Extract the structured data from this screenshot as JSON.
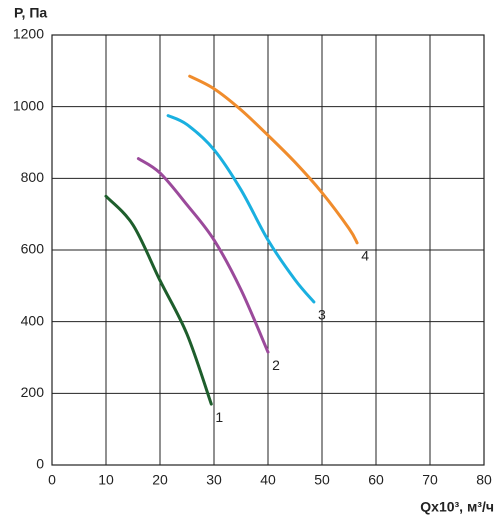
{
  "chart_data": {
    "type": "line",
    "y_label": "P, Па",
    "x_label": "Qx10³, м³/ч",
    "xlim": [
      0,
      80
    ],
    "xticks": [
      0,
      10,
      20,
      30,
      40,
      50,
      60,
      70,
      80
    ],
    "ylim": [
      0,
      1200
    ],
    "yticks": [
      0,
      200,
      400,
      600,
      800,
      1000,
      1200
    ],
    "grid": true,
    "series": [
      {
        "name": "1",
        "color": "#1e5e2c",
        "x": [
          10,
          15,
          20,
          25,
          29.5
        ],
        "values": [
          750,
          670,
          515,
          365,
          170
        ]
      },
      {
        "name": "2",
        "color": "#9b4a9b",
        "x": [
          16,
          20,
          25,
          30,
          35,
          40
        ],
        "values": [
          855,
          815,
          726,
          628,
          489,
          315
        ]
      },
      {
        "name": "3",
        "color": "#1ab0e0",
        "x": [
          21.5,
          25,
          30,
          35,
          40,
          45,
          48.5
        ],
        "values": [
          975,
          950,
          880,
          768,
          628,
          517,
          455
        ]
      },
      {
        "name": "4",
        "color": "#f08c2c",
        "x": [
          25.5,
          30,
          35,
          40,
          45,
          50,
          55,
          56.5
        ],
        "values": [
          1085,
          1050,
          991,
          920,
          845,
          760,
          660,
          620
        ]
      }
    ]
  }
}
